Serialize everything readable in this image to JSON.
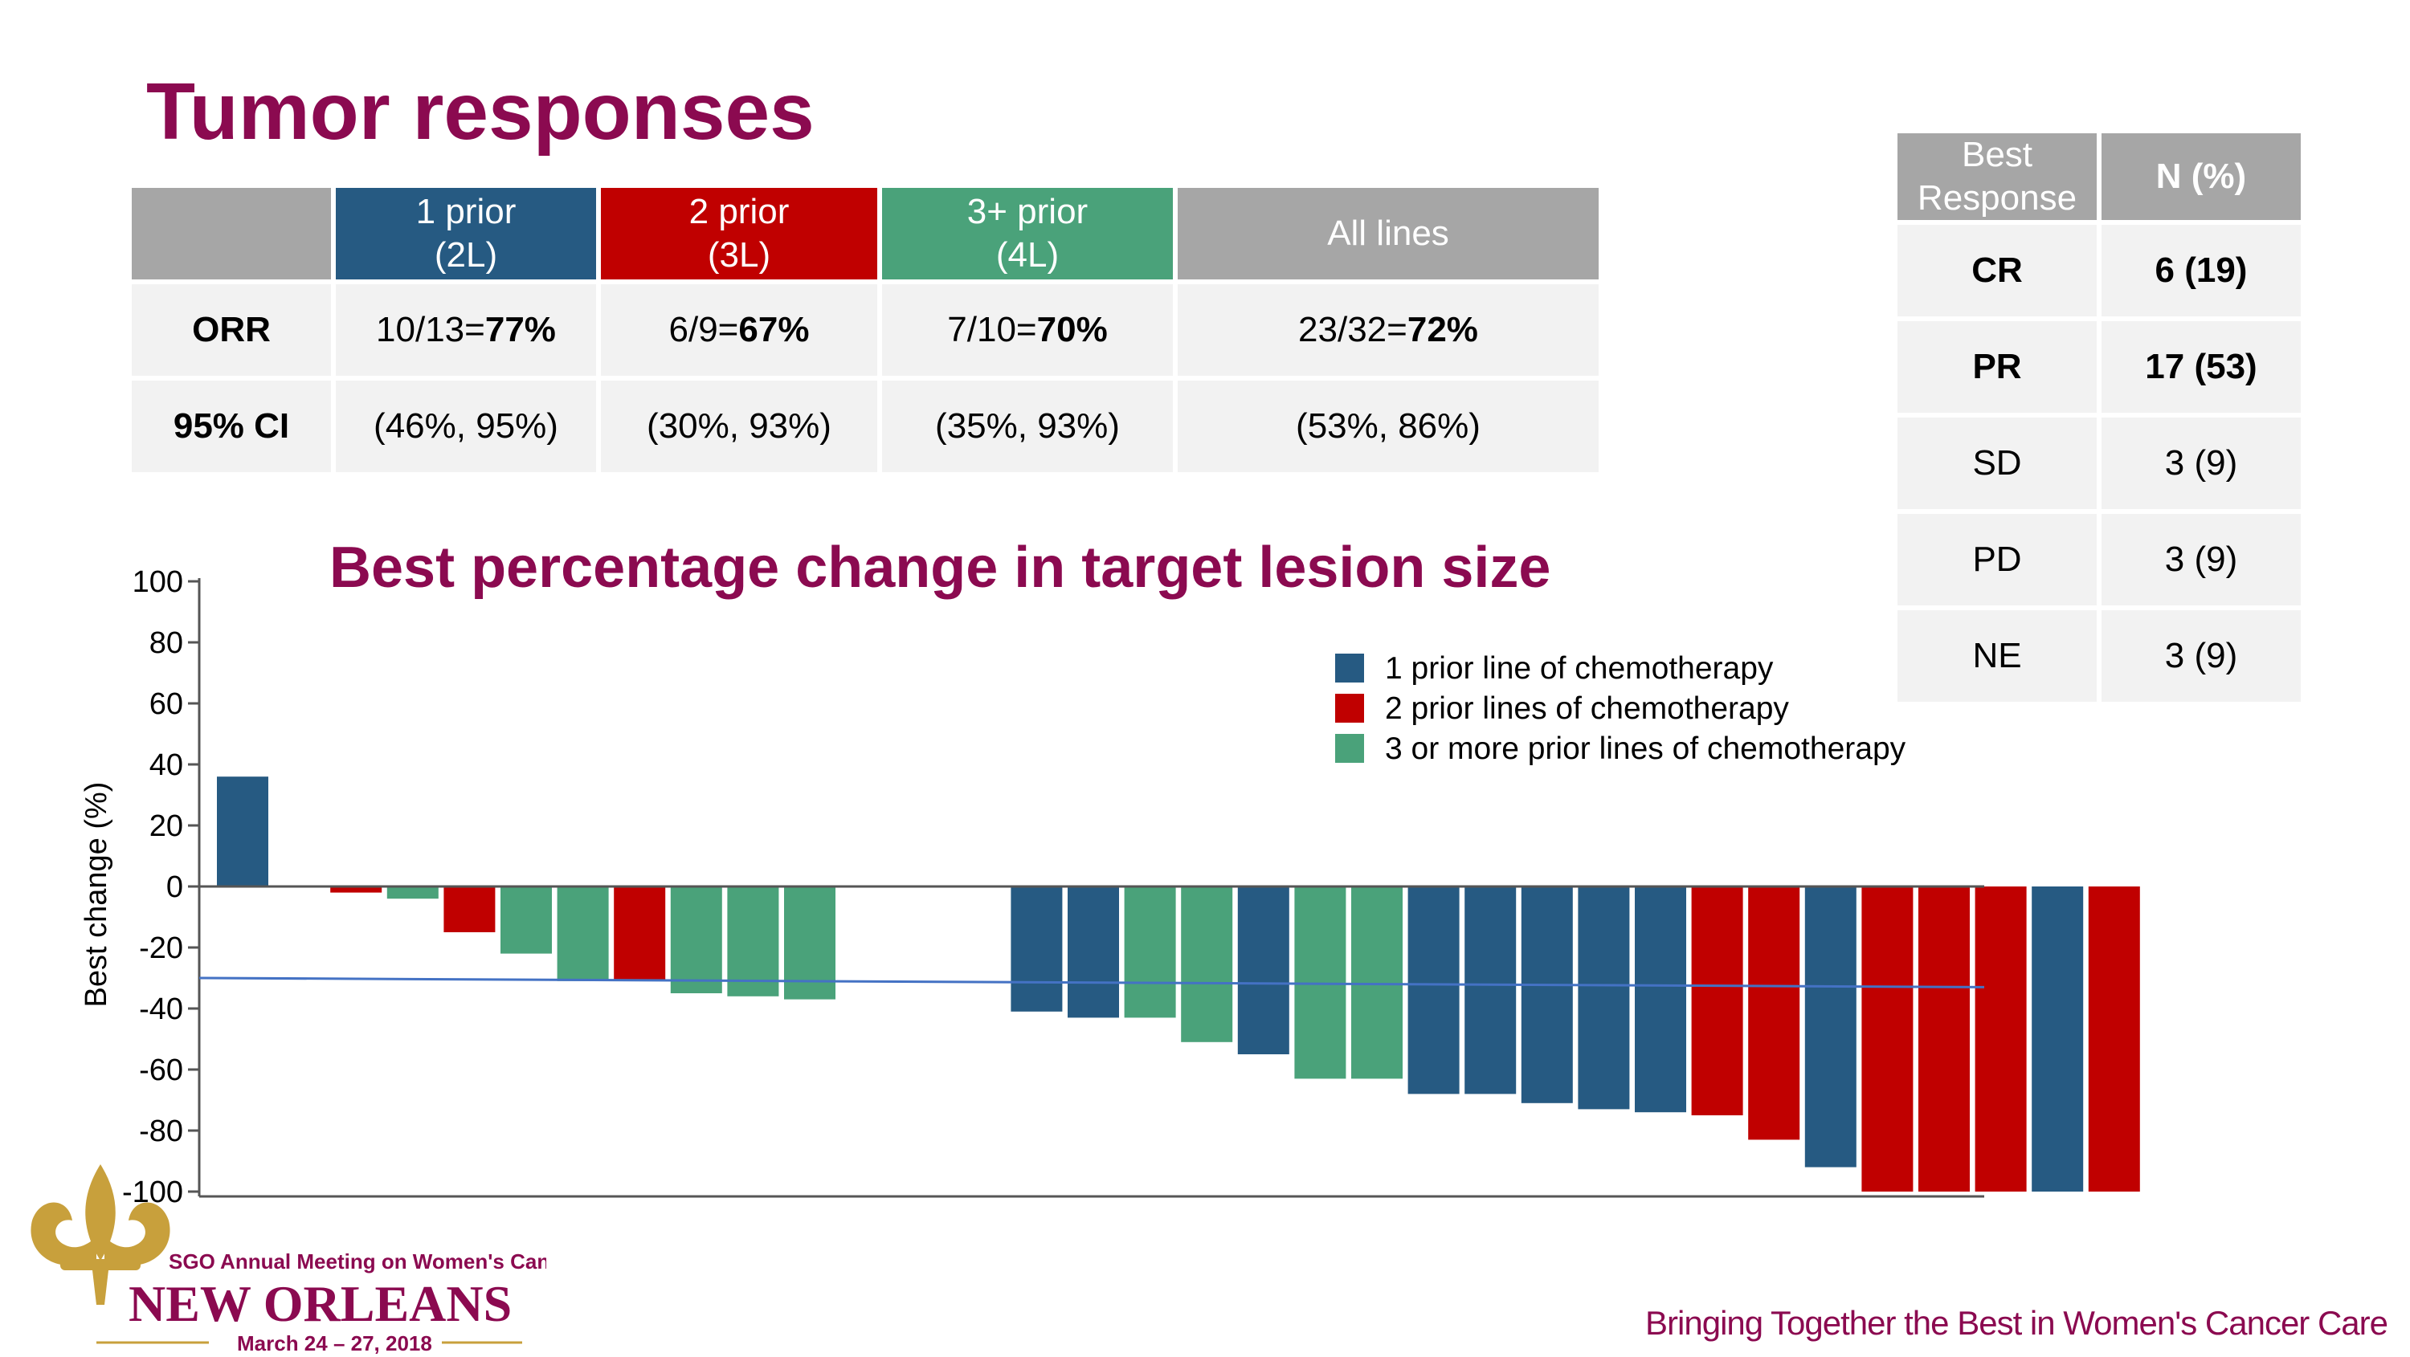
{
  "title": "Tumor responses",
  "orr_table": {
    "headers": [
      {
        "line1": "1 prior",
        "line2": "(2L)",
        "color": "#265a82"
      },
      {
        "line1": "2 prior",
        "line2": "(3L)",
        "color": "#c00000"
      },
      {
        "line1": "3+ prior",
        "line2": "(4L)",
        "color": "#4aa27a"
      },
      {
        "line1": "All lines",
        "line2": "",
        "color": "#a6a6a6"
      }
    ],
    "orr": {
      "label": "ORR",
      "cells": [
        {
          "frac": "10/13=",
          "pct": "77%"
        },
        {
          "frac": "6/9=",
          "pct": "67%"
        },
        {
          "frac": "7/10=",
          "pct": "70%"
        },
        {
          "frac": "23/32=",
          "pct": "72%"
        }
      ]
    },
    "ci": {
      "label": "95% CI",
      "cells": [
        "(46%, 95%)",
        "(30%, 93%)",
        "(35%, 93%)",
        "(53%, 86%)"
      ]
    }
  },
  "response_table": {
    "header": {
      "col1_line1": "Best",
      "col1_line2": "Response",
      "col2": "N (%)"
    },
    "rows": [
      {
        "response": "CR",
        "n": "6 (19)",
        "bold": true
      },
      {
        "response": "PR",
        "n": "17 (53)",
        "bold": true
      },
      {
        "response": "SD",
        "n": "3 (9)",
        "bold": false
      },
      {
        "response": "PD",
        "n": "3 (9)",
        "bold": false
      },
      {
        "response": "NE",
        "n": "3 (9)",
        "bold": false
      }
    ]
  },
  "chart_data": {
    "type": "bar",
    "title": "Best percentage change in target lesion size",
    "xlabel": "",
    "ylabel": "Best change (%)",
    "ylim": [
      -100,
      100
    ],
    "yticks": [
      100,
      80,
      60,
      40,
      20,
      0,
      -20,
      -40,
      -60,
      -80,
      -100
    ],
    "reference_line": {
      "y_start": -30,
      "y_end": -33
    },
    "legend": [
      {
        "label": "1 prior line of chemotherapy",
        "color": "#265a82"
      },
      {
        "label": "2 prior lines of chemotherapy",
        "color": "#c00000"
      },
      {
        "label": "3 or more prior lines of chemotherapy",
        "color": "#4aa27a"
      }
    ],
    "series": [
      {
        "group": "1 prior line of chemotherapy",
        "color": "#265a82",
        "values": [
          [
            0,
            36
          ],
          [
            14,
            -41
          ],
          [
            15,
            -43
          ],
          [
            18,
            -55
          ],
          [
            21,
            -68
          ],
          [
            22,
            -68
          ],
          [
            23,
            -71
          ],
          [
            24,
            -73
          ],
          [
            25,
            -74
          ],
          [
            28,
            -92
          ],
          [
            32,
            -100
          ]
        ]
      },
      {
        "group": "2 prior lines of chemotherapy",
        "color": "#c00000",
        "values": [
          [
            2,
            -2
          ],
          [
            4,
            -15
          ],
          [
            7,
            -31
          ],
          [
            26,
            -75
          ],
          [
            27,
            -83
          ],
          [
            29,
            -100
          ],
          [
            30,
            -100
          ],
          [
            31,
            -100
          ],
          [
            33,
            -100
          ]
        ]
      },
      {
        "group": "3 or more prior lines of chemotherapy",
        "color": "#4aa27a",
        "values": [
          [
            3,
            -4
          ],
          [
            5,
            -22
          ],
          [
            6,
            -31
          ],
          [
            8,
            -35
          ],
          [
            9,
            -36
          ],
          [
            10,
            -37
          ],
          [
            16,
            -43
          ],
          [
            17,
            -51
          ],
          [
            19,
            -63
          ],
          [
            20,
            -63
          ]
        ]
      }
    ],
    "num_slots": 34
  },
  "branding": {
    "meeting": "SGO Annual Meeting on Women's Cancer",
    "city": "NEW ORLEANS",
    "dates": "March 24 – 27, 2018",
    "tagline": "Bringing Together the Best in Women's Cancer Care",
    "logo_color": "#c8a03c",
    "text_color": "#8b0a50"
  }
}
